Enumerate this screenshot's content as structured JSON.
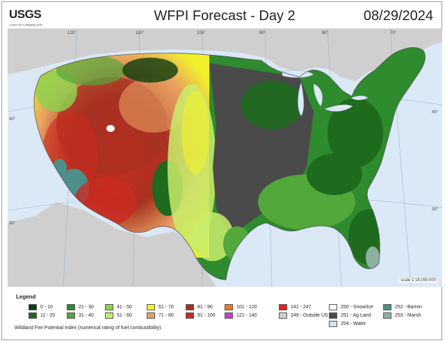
{
  "header": {
    "agency": "USGS",
    "tagline": "science for a changing world",
    "title": "WFPI Forecast - Day 2",
    "date": "08/29/2024"
  },
  "map": {
    "longitude_labels": [
      "120°",
      "110°",
      "100°",
      "90°",
      "80°",
      "70°"
    ],
    "latitude_labels": [
      "40°",
      "30°"
    ],
    "latitude_labels_right": [
      "40°",
      "30°"
    ],
    "scale": "scale 1:18,050,000"
  },
  "legend": {
    "title": "Legend",
    "caption": "Wildland Fire Potential Index (numerical rating of fuel combustibility).",
    "items": [
      {
        "label": "0 - 10",
        "color": "#0b3d0b"
      },
      {
        "label": "11 - 20",
        "color": "#1e6b1e"
      },
      {
        "label": "21 - 30",
        "color": "#2e8b2e"
      },
      {
        "label": "31 - 40",
        "color": "#52a83a"
      },
      {
        "label": "41 - 50",
        "color": "#8fcf4e"
      },
      {
        "label": "51 - 60",
        "color": "#c9ec6a"
      },
      {
        "label": "61 - 70",
        "color": "#f2f02a"
      },
      {
        "label": "71 - 80",
        "color": "#e8a060"
      },
      {
        "label": "81 - 90",
        "color": "#a83222"
      },
      {
        "label": "91 - 100",
        "color": "#cc2a22"
      },
      {
        "label": "101 - 120",
        "color": "#f07a1e"
      },
      {
        "label": "121 - 140",
        "color": "#d23ad0"
      },
      {
        "label": "141 - 247",
        "color": "#f01e1e"
      },
      {
        "label": "249 - Outside US",
        "color": "#cfcfcf"
      },
      {
        "label": "250 - Snow/Ice",
        "color": "#ffffff"
      },
      {
        "label": "251 - Ag Land",
        "color": "#4a4a4a"
      },
      {
        "label": "252 - Barren",
        "color": "#4d8f8a"
      },
      {
        "label": "253 - Marsh",
        "color": "#8fb0a0"
      },
      {
        "label": "254 - Water",
        "color": "#cfe1f5"
      }
    ]
  }
}
